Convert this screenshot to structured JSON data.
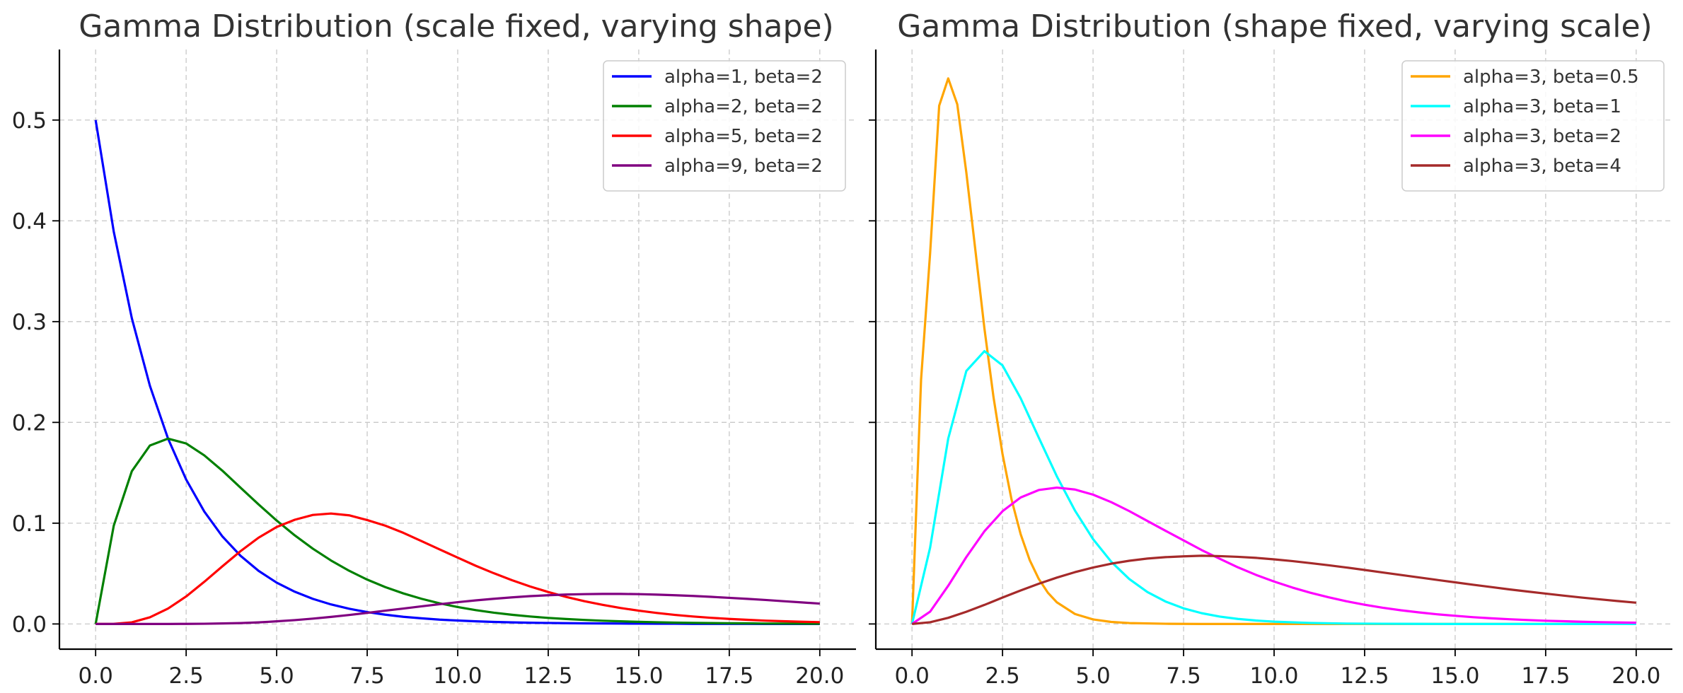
{
  "chart_data": [
    {
      "type": "line",
      "title": "Gamma Distribution (scale fixed, varying shape)",
      "xlabel": "",
      "ylabel": "",
      "xlim": [
        -1,
        21
      ],
      "ylim": [
        -0.025,
        0.57
      ],
      "xticks": [
        0,
        2.5,
        5,
        7.5,
        10,
        12.5,
        15,
        17.5,
        20
      ],
      "xtick_labels": [
        "0.0",
        "2.5",
        "5.0",
        "7.5",
        "10.0",
        "12.5",
        "15.0",
        "17.5",
        "20.0"
      ],
      "yticks": [
        0,
        0.1,
        0.2,
        0.3,
        0.4,
        0.5
      ],
      "ytick_labels": [
        "0.0",
        "0.1",
        "0.2",
        "0.3",
        "0.4",
        "0.5"
      ],
      "grid": true,
      "legend_position": "top-right",
      "series": [
        {
          "name": "alpha=1, beta=2",
          "color": "#0000ff",
          "x": [
            0,
            0.5,
            1,
            1.5,
            2,
            2.5,
            3,
            3.5,
            4,
            4.5,
            5,
            5.5,
            6,
            6.5,
            7,
            7.5,
            8,
            8.5,
            9,
            9.5,
            10,
            10.5,
            11,
            11.5,
            12,
            12.5,
            13,
            13.5,
            14,
            14.5,
            15,
            15.5,
            16,
            16.5,
            17,
            17.5,
            18,
            18.5,
            19,
            19.5,
            20
          ],
          "y": [
            0.5,
            0.3894,
            0.3033,
            0.2362,
            0.1839,
            0.1433,
            0.1116,
            0.0869,
            0.0677,
            0.0527,
            0.041,
            0.032,
            0.0249,
            0.0194,
            0.0151,
            0.0118,
            0.0092,
            0.0071,
            0.0056,
            0.0043,
            0.0034,
            0.0026,
            0.002,
            0.0016,
            0.0012,
            0.001,
            0.0008,
            0.0006,
            0.0005,
            0.0004,
            0.0003,
            0.0002,
            0.0002,
            0.0001,
            0.0001,
            0.0001,
            0.0001,
            0,
            0,
            0,
            0
          ]
        },
        {
          "name": "alpha=2, beta=2",
          "color": "#008000",
          "x": [
            0,
            0.5,
            1,
            1.5,
            2,
            2.5,
            3,
            3.5,
            4,
            4.5,
            5,
            5.5,
            6,
            6.5,
            7,
            7.5,
            8,
            8.5,
            9,
            9.5,
            10,
            10.5,
            11,
            11.5,
            12,
            12.5,
            13,
            13.5,
            14,
            14.5,
            15,
            15.5,
            16,
            16.5,
            17,
            17.5,
            18,
            18.5,
            19,
            19.5,
            20
          ],
          "y": [
            0,
            0.0974,
            0.1516,
            0.1771,
            0.1839,
            0.1791,
            0.1673,
            0.1521,
            0.1353,
            0.1186,
            0.1026,
            0.0879,
            0.0747,
            0.063,
            0.0528,
            0.044,
            0.0366,
            0.0303,
            0.025,
            0.0205,
            0.0168,
            0.0137,
            0.0112,
            0.0091,
            0.0074,
            0.006,
            0.0049,
            0.004,
            0.0032,
            0.0026,
            0.0021,
            0.0017,
            0.0013,
            0.0011,
            0.0009,
            0.0007,
            0.0006,
            0.0004,
            0.0004,
            0.0003,
            0.0002
          ]
        },
        {
          "name": "alpha=5, beta=2",
          "color": "#ff0000",
          "x": [
            0,
            0.5,
            1,
            1.5,
            2,
            2.5,
            3,
            3.5,
            4,
            4.5,
            5,
            5.5,
            6,
            6.5,
            7,
            7.5,
            8,
            8.5,
            9,
            9.5,
            10,
            10.5,
            11,
            11.5,
            12,
            12.5,
            13,
            13.5,
            14,
            14.5,
            15,
            15.5,
            16,
            16.5,
            17,
            17.5,
            18,
            18.5,
            19,
            19.5,
            20
          ],
          "y": [
            0,
            0.0001,
            0.0016,
            0.0066,
            0.0153,
            0.0273,
            0.0418,
            0.0572,
            0.0722,
            0.0856,
            0.0962,
            0.1034,
            0.1082,
            0.1096,
            0.1078,
            0.1031,
            0.0975,
            0.0904,
            0.0822,
            0.074,
            0.0658,
            0.0577,
            0.0503,
            0.0434,
            0.0372,
            0.0317,
            0.0268,
            0.0226,
            0.019,
            0.0158,
            0.0132,
            0.0109,
            0.009,
            0.0074,
            0.0061,
            0.005,
            0.0041,
            0.0033,
            0.0027,
            0.0022,
            0.0018
          ]
        },
        {
          "name": "alpha=9, beta=2",
          "color": "#800080",
          "x": [
            0,
            0.5,
            1,
            1.5,
            2,
            2.5,
            3,
            3.5,
            4,
            4.5,
            5,
            5.5,
            6,
            6.5,
            7,
            7.5,
            8,
            8.5,
            9,
            9.5,
            10,
            10.5,
            11,
            11.5,
            12,
            12.5,
            13,
            13.5,
            14,
            14.5,
            15,
            15.5,
            16,
            16.5,
            17,
            17.5,
            18,
            18.5,
            19,
            19.5,
            20
          ],
          "y": [
            0,
            0,
            0,
            0,
            0,
            0.0001,
            0.0002,
            0.0005,
            0.0009,
            0.0016,
            0.0026,
            0.0038,
            0.0053,
            0.007,
            0.0089,
            0.011,
            0.0132,
            0.0153,
            0.0175,
            0.0196,
            0.0216,
            0.0234,
            0.025,
            0.0264,
            0.0276,
            0.0285,
            0.0292,
            0.0296,
            0.0298,
            0.0298,
            0.0296,
            0.0291,
            0.0285,
            0.0278,
            0.0269,
            0.0259,
            0.0249,
            0.0238,
            0.0226,
            0.0214,
            0.0202
          ]
        }
      ]
    },
    {
      "type": "line",
      "title": "Gamma Distribution (shape fixed, varying scale)",
      "xlabel": "",
      "ylabel": "",
      "xlim": [
        -1,
        21
      ],
      "ylim": [
        -0.025,
        0.57
      ],
      "xticks": [
        0,
        2.5,
        5,
        7.5,
        10,
        12.5,
        15,
        17.5,
        20
      ],
      "xtick_labels": [
        "0.0",
        "2.5",
        "5.0",
        "7.5",
        "10.0",
        "12.5",
        "15.0",
        "17.5",
        "20.0"
      ],
      "yticks": [
        0,
        0.1,
        0.2,
        0.3,
        0.4,
        0.5
      ],
      "ytick_labels": [
        "",
        "",
        "",
        "",
        "",
        ""
      ],
      "grid": true,
      "legend_position": "top-right",
      "series": [
        {
          "name": "alpha=3, beta=0.5",
          "color": "#ffa500",
          "x": [
            0,
            0.25,
            0.5,
            0.75,
            1,
            1.25,
            1.5,
            1.75,
            2,
            2.25,
            2.5,
            2.75,
            3,
            3.25,
            3.5,
            3.75,
            4,
            4.5,
            5,
            5.5,
            6,
            7,
            8,
            9,
            10,
            12,
            14,
            16,
            18,
            20
          ],
          "y": [
            0,
            0.2425,
            0.3679,
            0.5142,
            0.5413,
            0.5156,
            0.448,
            0.3708,
            0.2931,
            0.2252,
            0.1684,
            0.1233,
            0.0891,
            0.0634,
            0.0447,
            0.0311,
            0.0215,
            0.0099,
            0.0045,
            0.002,
            0.0009,
            0.0002,
            0,
            0,
            0,
            0,
            0,
            0,
            0,
            0
          ]
        },
        {
          "name": "alpha=3, beta=1",
          "color": "#00ffff",
          "x": [
            0,
            0.5,
            1,
            1.5,
            2,
            2.5,
            3,
            3.5,
            4,
            4.5,
            5,
            5.5,
            6,
            6.5,
            7,
            7.5,
            8,
            8.5,
            9,
            9.5,
            10,
            11,
            12,
            13,
            14,
            15,
            16,
            17,
            18,
            19,
            20
          ],
          "y": [
            0,
            0.0758,
            0.1839,
            0.251,
            0.2707,
            0.2565,
            0.224,
            0.1849,
            0.1465,
            0.1125,
            0.0842,
            0.0618,
            0.0446,
            0.0317,
            0.0223,
            0.0155,
            0.0107,
            0.0073,
            0.005,
            0.0034,
            0.0023,
            0.001,
            0.0004,
            0.0002,
            0.0001,
            0,
            0,
            0,
            0,
            0,
            0
          ]
        },
        {
          "name": "alpha=3, beta=2",
          "color": "#ff00ff",
          "x": [
            0,
            0.5,
            1,
            1.5,
            2,
            2.5,
            3,
            3.5,
            4,
            4.5,
            5,
            5.5,
            6,
            6.5,
            7,
            7.5,
            8,
            8.5,
            9,
            9.5,
            10,
            10.5,
            11,
            11.5,
            12,
            12.5,
            13,
            13.5,
            14,
            14.5,
            15,
            15.5,
            16,
            16.5,
            17,
            17.5,
            18,
            18.5,
            19,
            19.5,
            20
          ],
          "y": [
            0,
            0.0122,
            0.0379,
            0.0664,
            0.092,
            0.1119,
            0.1255,
            0.1329,
            0.1353,
            0.1334,
            0.1283,
            0.1209,
            0.112,
            0.1022,
            0.0925,
            0.0829,
            0.0733,
            0.0647,
            0.0562,
            0.0487,
            0.0421,
            0.0362,
            0.031,
            0.0265,
            0.0225,
            0.0191,
            0.0161,
            0.0136,
            0.0115,
            0.0096,
            0.0081,
            0.0067,
            0.0056,
            0.0047,
            0.0039,
            0.0032,
            0.0027,
            0.0022,
            0.0018,
            0.0015,
            0.0012
          ]
        },
        {
          "name": "alpha=3, beta=4",
          "color": "#a52a2a",
          "x": [
            0,
            0.5,
            1,
            1.5,
            2,
            2.5,
            3,
            3.5,
            4,
            4.5,
            5,
            5.5,
            6,
            6.5,
            7,
            7.5,
            8,
            8.5,
            9,
            9.5,
            10,
            10.5,
            11,
            11.5,
            12,
            12.5,
            13,
            13.5,
            14,
            14.5,
            15,
            15.5,
            16,
            16.5,
            17,
            17.5,
            18,
            18.5,
            19,
            19.5,
            20
          ],
          "y": [
            0,
            0.0017,
            0.0061,
            0.0121,
            0.0189,
            0.0262,
            0.0332,
            0.0399,
            0.046,
            0.0514,
            0.056,
            0.0598,
            0.0627,
            0.0649,
            0.0663,
            0.0671,
            0.0677,
            0.0673,
            0.0666,
            0.0656,
            0.0641,
            0.0624,
            0.0604,
            0.0583,
            0.056,
            0.0536,
            0.0511,
            0.0486,
            0.0462,
            0.0437,
            0.0413,
            0.0389,
            0.0366,
            0.0343,
            0.0322,
            0.0301,
            0.0281,
            0.0262,
            0.0244,
            0.0227,
            0.0211
          ]
        }
      ]
    }
  ]
}
